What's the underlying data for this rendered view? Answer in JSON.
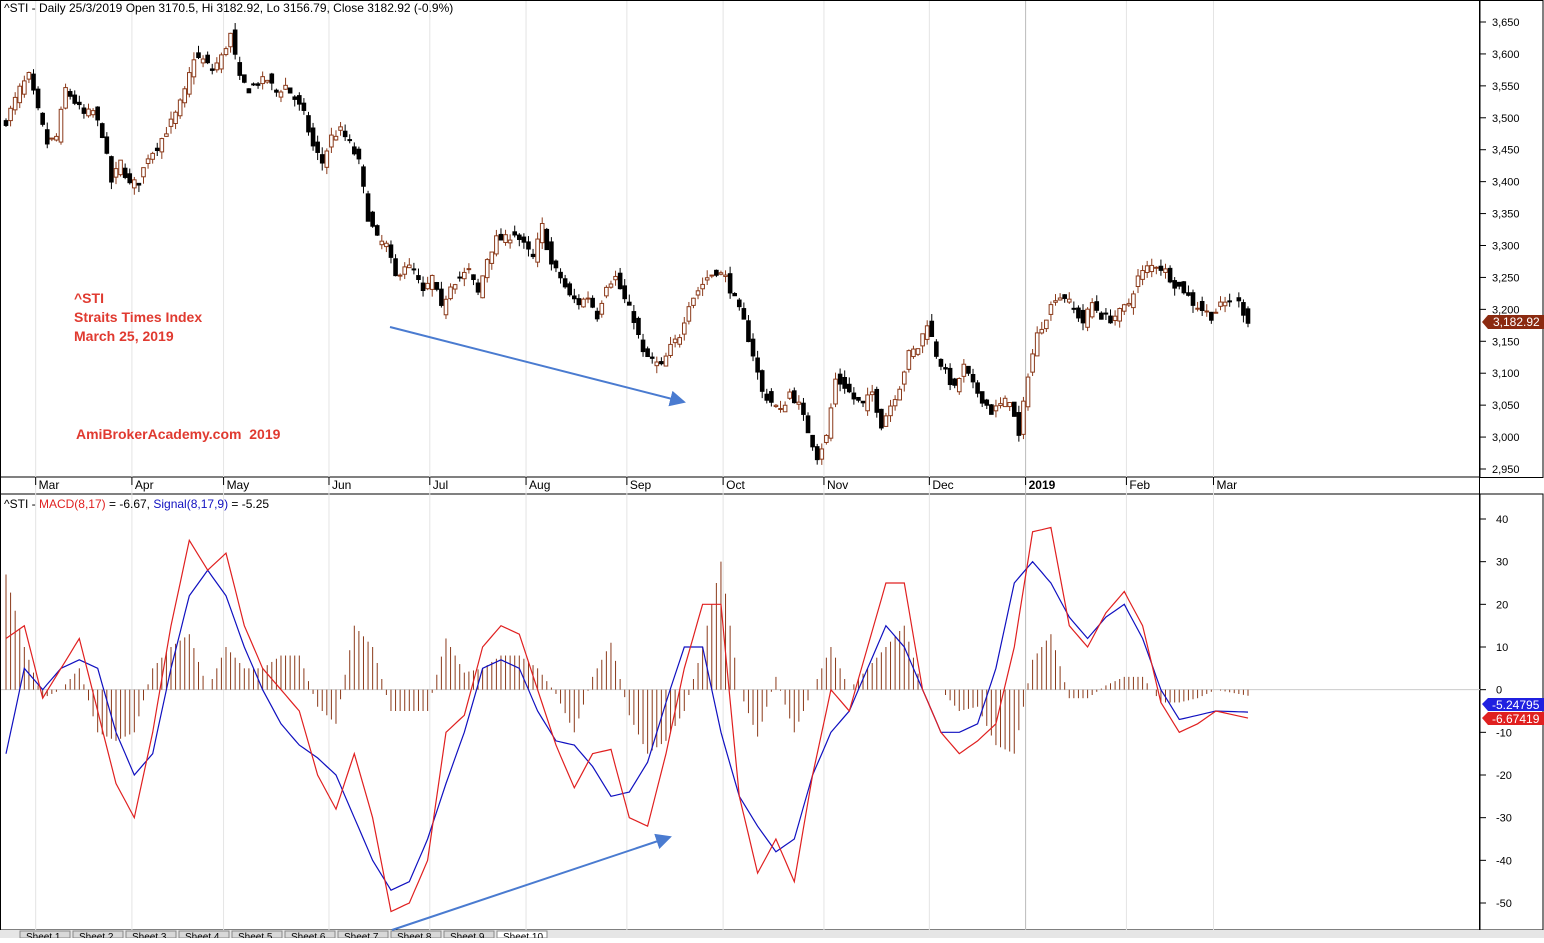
{
  "price_panel": {
    "header": "^STI - Daily 25/3/2019 Open 3170.5, Hi 3182.92, Lo 3156.79, Close 3182.92 (-0.9%)",
    "annotation_lines": [
      "^STI",
      "Straits Times Index",
      "March 25, 2019"
    ],
    "watermark": "AmiBrokerAcademy.com  2019",
    "last_price_tag": "3,182.92",
    "colors": {
      "up": "#8b3a1a",
      "down": "#000000",
      "annotation": "#e03a30",
      "tag_bg": "#8b2a10",
      "arrow": "#4a7bd0"
    }
  },
  "indicator_panel": {
    "header_prefix": "^STI - ",
    "macd_label": "MACD(8,17)",
    "macd_value_text": " = -6.67, ",
    "signal_label": "Signal(8,17,9)",
    "signal_value_text": " = -5.25",
    "signal_tag": "-5.24795",
    "macd_tag": "-6.67419",
    "colors": {
      "macd": "#e02020",
      "signal": "#1010c0",
      "histogram": "#8b3a1a"
    }
  },
  "bottom_tabs": [
    "Sheet 1",
    "Sheet 2",
    "Sheet 3",
    "Sheet 4",
    "Sheet 5",
    "Sheet 6",
    "Sheet 7",
    "Sheet 8",
    "Sheet 9",
    "Sheet 10"
  ],
  "chart_data": [
    {
      "type": "candlestick",
      "title": "^STI - Daily 25/3/2019 Open 3170.5, Hi 3182.92, Lo 3156.79, Close 3182.92 (-0.9%)",
      "ylim": [
        2930,
        3670
      ],
      "yticks": [
        "3,650",
        "3,600",
        "3,550",
        "3,500",
        "3,450",
        "3,400",
        "3,350",
        "3,300",
        "3,250",
        "3,200",
        "3,150",
        "3,100",
        "3,050",
        "3,000",
        "2,950"
      ],
      "ytick_values": [
        3650,
        3600,
        3550,
        3500,
        3450,
        3400,
        3350,
        3300,
        3250,
        3200,
        3150,
        3100,
        3050,
        3000,
        2950
      ],
      "xlabels": [
        "Mar",
        "Apr",
        "May",
        "Jun",
        "Jul",
        "Aug",
        "Sep",
        "Oct",
        "Nov",
        "Dec",
        "2019",
        "Feb",
        "Mar"
      ],
      "xlabel_bar_index": [
        8,
        29,
        49,
        72,
        94,
        115,
        137,
        158,
        180,
        203,
        224,
        246,
        265
      ],
      "anchors": [
        [
          0,
          3495
        ],
        [
          3,
          3545
        ],
        [
          5,
          3565
        ],
        [
          7,
          3510
        ],
        [
          9,
          3460
        ],
        [
          11,
          3470
        ],
        [
          13,
          3545
        ],
        [
          15,
          3525
        ],
        [
          17,
          3505
        ],
        [
          19,
          3510
        ],
        [
          21,
          3475
        ],
        [
          23,
          3400
        ],
        [
          25,
          3430
        ],
        [
          27,
          3395
        ],
        [
          29,
          3400
        ],
        [
          31,
          3440
        ],
        [
          33,
          3455
        ],
        [
          35,
          3480
        ],
        [
          37,
          3505
        ],
        [
          39,
          3540
        ],
        [
          41,
          3595
        ],
        [
          43,
          3590
        ],
        [
          45,
          3575
        ],
        [
          47,
          3595
        ],
        [
          49,
          3630
        ],
        [
          51,
          3560
        ],
        [
          53,
          3545
        ],
        [
          55,
          3555
        ],
        [
          57,
          3560
        ],
        [
          59,
          3540
        ],
        [
          61,
          3550
        ],
        [
          63,
          3530
        ],
        [
          65,
          3505
        ],
        [
          67,
          3455
        ],
        [
          69,
          3430
        ],
        [
          71,
          3470
        ],
        [
          73,
          3480
        ],
        [
          75,
          3460
        ],
        [
          77,
          3430
        ],
        [
          79,
          3345
        ],
        [
          81,
          3310
        ],
        [
          83,
          3300
        ],
        [
          85,
          3250
        ],
        [
          87,
          3270
        ],
        [
          89,
          3260
        ],
        [
          91,
          3225
        ],
        [
          93,
          3250
        ],
        [
          95,
          3200
        ],
        [
          97,
          3240
        ],
        [
          99,
          3250
        ],
        [
          101,
          3260
        ],
        [
          103,
          3225
        ],
        [
          105,
          3280
        ],
        [
          107,
          3310
        ],
        [
          109,
          3310
        ],
        [
          111,
          3320
        ],
        [
          113,
          3300
        ],
        [
          115,
          3280
        ],
        [
          117,
          3330
        ],
        [
          119,
          3270
        ],
        [
          121,
          3250
        ],
        [
          123,
          3220
        ],
        [
          125,
          3210
        ],
        [
          127,
          3220
        ],
        [
          129,
          3190
        ],
        [
          131,
          3240
        ],
        [
          133,
          3250
        ],
        [
          135,
          3215
        ],
        [
          137,
          3185
        ],
        [
          139,
          3130
        ],
        [
          141,
          3120
        ],
        [
          143,
          3110
        ],
        [
          145,
          3140
        ],
        [
          147,
          3160
        ],
        [
          149,
          3210
        ],
        [
          151,
          3230
        ],
        [
          153,
          3250
        ],
        [
          155,
          3260
        ],
        [
          157,
          3250
        ],
        [
          159,
          3215
        ],
        [
          161,
          3180
        ],
        [
          163,
          3130
        ],
        [
          165,
          3070
        ],
        [
          167,
          3055
        ],
        [
          169,
          3040
        ],
        [
          171,
          3070
        ],
        [
          173,
          3050
        ],
        [
          175,
          3010
        ],
        [
          177,
          2970
        ],
        [
          179,
          3000
        ],
        [
          181,
          3090
        ],
        [
          183,
          3080
        ],
        [
          185,
          3060
        ],
        [
          187,
          3050
        ],
        [
          189,
          3070
        ],
        [
          191,
          3020
        ],
        [
          193,
          3050
        ],
        [
          195,
          3080
        ],
        [
          197,
          3130
        ],
        [
          199,
          3140
        ],
        [
          201,
          3180
        ],
        [
          203,
          3130
        ],
        [
          205,
          3100
        ],
        [
          207,
          3075
        ],
        [
          209,
          3110
        ],
        [
          211,
          3080
        ],
        [
          213,
          3060
        ],
        [
          215,
          3040
        ],
        [
          217,
          3050
        ],
        [
          219,
          3060
        ],
        [
          221,
          3000
        ],
        [
          223,
          3100
        ],
        [
          225,
          3160
        ],
        [
          227,
          3190
        ],
        [
          229,
          3220
        ],
        [
          231,
          3220
        ],
        [
          233,
          3200
        ],
        [
          235,
          3180
        ],
        [
          237,
          3210
        ],
        [
          239,
          3190
        ],
        [
          241,
          3185
        ],
        [
          243,
          3195
        ],
        [
          245,
          3210
        ],
        [
          247,
          3250
        ],
        [
          249,
          3265
        ],
        [
          251,
          3270
        ],
        [
          253,
          3260
        ],
        [
          255,
          3240
        ],
        [
          257,
          3230
        ],
        [
          259,
          3210
        ],
        [
          261,
          3200
        ],
        [
          263,
          3190
        ],
        [
          265,
          3205
        ],
        [
          267,
          3215
        ],
        [
          269,
          3210
        ],
        [
          271,
          3183
        ]
      ]
    },
    {
      "type": "line",
      "title": "^STI - MACD(8,17) = -6.67, Signal(8,17,9) = -5.25",
      "ylim": [
        -55,
        45
      ],
      "yticks": [
        "40",
        "30",
        "20",
        "10",
        "0",
        "-10",
        "-20",
        "-30",
        "-40",
        "-50"
      ],
      "ytick_values": [
        40,
        30,
        20,
        10,
        0,
        -10,
        -20,
        -30,
        -40,
        -50
      ],
      "series": [
        {
          "name": "MACD(8,17)",
          "anchors": [
            [
              0,
              12
            ],
            [
              4,
              15
            ],
            [
              8,
              -2
            ],
            [
              12,
              5
            ],
            [
              16,
              12
            ],
            [
              20,
              -5
            ],
            [
              24,
              -22
            ],
            [
              28,
              -30
            ],
            [
              32,
              -10
            ],
            [
              36,
              15
            ],
            [
              40,
              35
            ],
            [
              44,
              28
            ],
            [
              48,
              32
            ],
            [
              52,
              15
            ],
            [
              56,
              5
            ],
            [
              60,
              0
            ],
            [
              64,
              -5
            ],
            [
              68,
              -20
            ],
            [
              72,
              -28
            ],
            [
              76,
              -15
            ],
            [
              80,
              -30
            ],
            [
              84,
              -52
            ],
            [
              88,
              -50
            ],
            [
              92,
              -40
            ],
            [
              96,
              -10
            ],
            [
              100,
              -6
            ],
            [
              104,
              10
            ],
            [
              108,
              15
            ],
            [
              112,
              13
            ],
            [
              116,
              0
            ],
            [
              120,
              -13
            ],
            [
              124,
              -23
            ],
            [
              128,
              -15
            ],
            [
              132,
              -14
            ],
            [
              136,
              -30
            ],
            [
              140,
              -32
            ],
            [
              144,
              -15
            ],
            [
              148,
              5
            ],
            [
              152,
              20
            ],
            [
              156,
              20
            ],
            [
              160,
              -25
            ],
            [
              164,
              -43
            ],
            [
              168,
              -35
            ],
            [
              172,
              -45
            ],
            [
              176,
              -20
            ],
            [
              180,
              0
            ],
            [
              184,
              -5
            ],
            [
              188,
              10
            ],
            [
              192,
              25
            ],
            [
              196,
              25
            ],
            [
              200,
              0
            ],
            [
              204,
              -10
            ],
            [
              208,
              -15
            ],
            [
              212,
              -12
            ],
            [
              216,
              -8
            ],
            [
              220,
              10
            ],
            [
              224,
              37
            ],
            [
              228,
              38
            ],
            [
              232,
              15
            ],
            [
              236,
              10
            ],
            [
              240,
              18
            ],
            [
              244,
              23
            ],
            [
              248,
              15
            ],
            [
              252,
              -3
            ],
            [
              256,
              -10
            ],
            [
              260,
              -8
            ],
            [
              264,
              -5
            ],
            [
              271,
              -6.67
            ]
          ]
        },
        {
          "name": "Signal(8,17,9)",
          "anchors": [
            [
              0,
              -15
            ],
            [
              4,
              5
            ],
            [
              8,
              0
            ],
            [
              12,
              5
            ],
            [
              16,
              7
            ],
            [
              20,
              5
            ],
            [
              24,
              -10
            ],
            [
              28,
              -20
            ],
            [
              32,
              -15
            ],
            [
              36,
              5
            ],
            [
              40,
              22
            ],
            [
              44,
              28
            ],
            [
              48,
              22
            ],
            [
              52,
              10
            ],
            [
              56,
              0
            ],
            [
              60,
              -8
            ],
            [
              64,
              -13
            ],
            [
              68,
              -16
            ],
            [
              72,
              -20
            ],
            [
              76,
              -30
            ],
            [
              80,
              -40
            ],
            [
              84,
              -47
            ],
            [
              88,
              -45
            ],
            [
              92,
              -35
            ],
            [
              96,
              -22
            ],
            [
              100,
              -10
            ],
            [
              104,
              5
            ],
            [
              108,
              7
            ],
            [
              112,
              5
            ],
            [
              116,
              -5
            ],
            [
              120,
              -12
            ],
            [
              124,
              -13
            ],
            [
              128,
              -18
            ],
            [
              132,
              -25
            ],
            [
              136,
              -24
            ],
            [
              140,
              -17
            ],
            [
              144,
              -3
            ],
            [
              148,
              10
            ],
            [
              152,
              10
            ],
            [
              156,
              -10
            ],
            [
              160,
              -25
            ],
            [
              164,
              -32
            ],
            [
              168,
              -38
            ],
            [
              172,
              -35
            ],
            [
              176,
              -20
            ],
            [
              180,
              -10
            ],
            [
              184,
              -5
            ],
            [
              188,
              5
            ],
            [
              192,
              15
            ],
            [
              196,
              10
            ],
            [
              200,
              0
            ],
            [
              204,
              -10
            ],
            [
              208,
              -10
            ],
            [
              212,
              -8
            ],
            [
              216,
              5
            ],
            [
              220,
              25
            ],
            [
              224,
              30
            ],
            [
              228,
              25
            ],
            [
              232,
              17
            ],
            [
              236,
              12
            ],
            [
              240,
              17
            ],
            [
              244,
              20
            ],
            [
              248,
              12
            ],
            [
              252,
              0
            ],
            [
              256,
              -7
            ],
            [
              260,
              -6
            ],
            [
              264,
              -5
            ],
            [
              271,
              -5.25
            ]
          ]
        }
      ]
    }
  ]
}
